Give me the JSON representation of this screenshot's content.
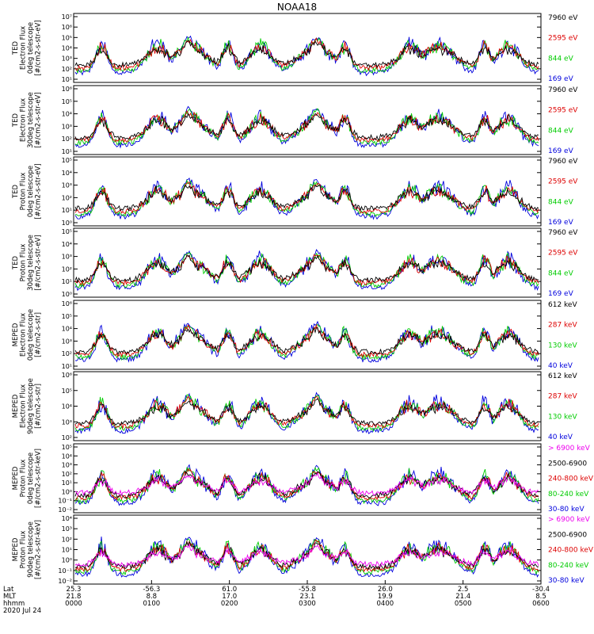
{
  "title": "NOAA18",
  "chart_data": {
    "type": "line",
    "time_axis": {
      "rows": [
        {
          "label": "Lat",
          "values": [
            "25.3",
            "-56.3",
            "61.0",
            "-55.8",
            "26.0",
            "2.5",
            "-30.4"
          ]
        },
        {
          "label": "MLT",
          "values": [
            "21.8",
            "8.8",
            "17.0",
            "23.1",
            "19.9",
            "21.4",
            "8.5"
          ]
        },
        {
          "label": "hhmm",
          "values": [
            "0000",
            "0100",
            "0200",
            "0300",
            "0400",
            "0500",
            "0600"
          ]
        }
      ],
      "date": "2020 Jul 24"
    },
    "panels": [
      {
        "ylabel": [
          "TED",
          "Electron Flux",
          "0deg telescope",
          "[#/cm2-s-str-eV]"
        ],
        "yticks": [
          "10¹",
          "10²",
          "10³",
          "10⁴",
          "10⁵",
          "10⁶",
          "10⁷"
        ],
        "legend": [
          {
            "label": "7960 eV",
            "color": "#000000"
          },
          {
            "label": "2595 eV",
            "color": "#dd0000"
          },
          {
            "label": "844 eV",
            "color": "#00cc00"
          },
          {
            "label": "169 eV",
            "color": "#0000dd"
          }
        ]
      },
      {
        "ylabel": [
          "TED",
          "Electron Flux",
          "30deg telescope",
          "[#/cm2-s-str-eV]"
        ],
        "yticks": [
          "10¹",
          "10²",
          "10³",
          "10⁴",
          "10⁵",
          "10⁶"
        ],
        "legend": [
          {
            "label": "7960 eV",
            "color": "#000000"
          },
          {
            "label": "2595 eV",
            "color": "#dd0000"
          },
          {
            "label": "844 eV",
            "color": "#00cc00"
          },
          {
            "label": "169 eV",
            "color": "#0000dd"
          }
        ]
      },
      {
        "ylabel": [
          "TED",
          "Proton Flux",
          "0deg telescope",
          "[#/cm2-s-str-eV]"
        ],
        "yticks": [
          "10⁰",
          "10¹",
          "10²",
          "10³",
          "10⁴",
          "10⁵"
        ],
        "legend": [
          {
            "label": "7960 eV",
            "color": "#000000"
          },
          {
            "label": "2595 eV",
            "color": "#dd0000"
          },
          {
            "label": "844 eV",
            "color": "#00cc00"
          },
          {
            "label": "169 eV",
            "color": "#0000dd"
          }
        ]
      },
      {
        "ylabel": [
          "TED",
          "Proton Flux",
          "30deg telescope",
          "[#/cm2-s-str-eV]"
        ],
        "yticks": [
          "10⁰",
          "10¹",
          "10²",
          "10³",
          "10⁴",
          "10⁵"
        ],
        "legend": [
          {
            "label": "7960 eV",
            "color": "#000000"
          },
          {
            "label": "2595 eV",
            "color": "#dd0000"
          },
          {
            "label": "844 eV",
            "color": "#00cc00"
          },
          {
            "label": "169 eV",
            "color": "#0000dd"
          }
        ]
      },
      {
        "ylabel": [
          "MEPED",
          "Electron Flux",
          "0deg telescope",
          "[#/cm2-s-str]"
        ],
        "yticks": [
          "10¹",
          "10²",
          "10³",
          "10⁴",
          "10⁵",
          "10⁶"
        ],
        "legend": [
          {
            "label": "612 keV",
            "color": "#000000"
          },
          {
            "label": "287 keV",
            "color": "#dd0000"
          },
          {
            "label": "130 keV",
            "color": "#00cc00"
          },
          {
            "label": "40 keV",
            "color": "#0000dd"
          }
        ]
      },
      {
        "ylabel": [
          "MEPED",
          "Electron Flux",
          "90deg telescope",
          "[#/cm2-s-str]"
        ],
        "yticks": [
          "10²",
          "10³",
          "10⁴",
          "10⁵",
          "10⁶"
        ],
        "legend": [
          {
            "label": "612 keV",
            "color": "#000000"
          },
          {
            "label": "287 keV",
            "color": "#dd0000"
          },
          {
            "label": "130 keV",
            "color": "#00cc00"
          },
          {
            "label": "40 keV",
            "color": "#0000dd"
          }
        ]
      },
      {
        "ylabel": [
          "MEPED",
          "Proton Flux",
          "0deg telescope",
          "[#/cm2-s-str-keV]"
        ],
        "yticks": [
          "10⁻²",
          "10⁻¹",
          "10⁰",
          "10¹",
          "10²",
          "10³",
          "10⁴",
          "10⁵"
        ],
        "legend": [
          {
            "label": "> 6900 keV",
            "color": "#ee00ee"
          },
          {
            "label": "2500-6900",
            "color": "#000000"
          },
          {
            "label": "240-800 keV",
            "color": "#dd0000"
          },
          {
            "label": "80-240 keV",
            "color": "#00cc00"
          },
          {
            "label": "30-80 keV",
            "color": "#0000dd"
          }
        ]
      },
      {
        "ylabel": [
          "MEPED",
          "Proton Flux",
          "90deg telescope",
          "[#/cm2-s-str-keV]"
        ],
        "yticks": [
          "10⁻²",
          "10⁻¹",
          "10⁰",
          "10¹",
          "10²",
          "10³",
          "10⁴"
        ],
        "legend": [
          {
            "label": "> 6900 keV",
            "color": "#ee00ee"
          },
          {
            "label": "2500-6900",
            "color": "#000000"
          },
          {
            "label": "240-800 keV",
            "color": "#dd0000"
          },
          {
            "label": "80-240 keV",
            "color": "#00cc00"
          },
          {
            "label": "30-80 keV",
            "color": "#0000dd"
          }
        ]
      }
    ]
  }
}
